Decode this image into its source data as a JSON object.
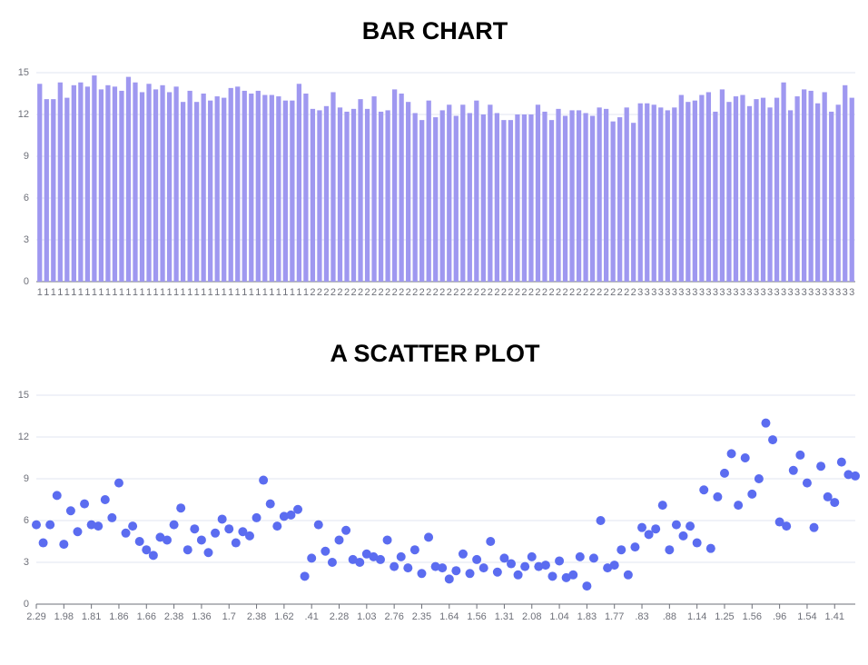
{
  "chart_data": [
    {
      "type": "bar",
      "title": "BAR CHART",
      "color": "#9f98f0",
      "categories": [
        "1",
        "1",
        "1",
        "1",
        "1",
        "1",
        "1",
        "1",
        "1",
        "1",
        "1",
        "1",
        "1",
        "1",
        "1",
        "1",
        "1",
        "1",
        "1",
        "1",
        "1",
        "1",
        "1",
        "1",
        "1",
        "1",
        "1",
        "1",
        "1",
        "1",
        "1",
        "1",
        "1",
        "1",
        "1",
        "1",
        "1",
        "1",
        "1",
        "1",
        "2",
        "2",
        "2",
        "2",
        "2",
        "2",
        "2",
        "2",
        "2",
        "2",
        "2",
        "2",
        "2",
        "2",
        "2",
        "2",
        "2",
        "2",
        "2",
        "2",
        "2",
        "2",
        "2",
        "2",
        "2",
        "2",
        "2",
        "2",
        "2",
        "2",
        "2",
        "2",
        "2",
        "2",
        "2",
        "2",
        "2",
        "2",
        "2",
        "2",
        "2",
        "2",
        "2",
        "2",
        "2",
        "2",
        "2",
        "2",
        "3",
        "3",
        "3",
        "3",
        "3",
        "3",
        "3",
        "3",
        "3",
        "3",
        "3",
        "3",
        "3",
        "3",
        "3",
        "3",
        "3",
        "3",
        "3",
        "3",
        "3",
        "3",
        "3",
        "3",
        "3",
        "3",
        "3",
        "3",
        "3",
        "3",
        "3",
        "3"
      ],
      "values": [
        14.2,
        13.1,
        13.1,
        14.3,
        13.2,
        14.1,
        14.3,
        14.0,
        14.8,
        13.8,
        14.1,
        14.0,
        13.7,
        14.7,
        14.3,
        13.6,
        14.2,
        13.8,
        14.1,
        13.6,
        14.0,
        12.9,
        13.7,
        12.9,
        13.5,
        13.0,
        13.3,
        13.2,
        13.9,
        14.0,
        13.7,
        13.5,
        13.7,
        13.4,
        13.4,
        13.3,
        13.0,
        13.0,
        14.2,
        13.5,
        12.4,
        12.3,
        12.6,
        13.6,
        12.5,
        12.2,
        12.4,
        13.1,
        12.4,
        13.3,
        12.2,
        12.3,
        13.8,
        13.5,
        12.9,
        12.1,
        11.6,
        13.0,
        11.8,
        12.3,
        12.7,
        11.9,
        12.7,
        12.1,
        13.0,
        12.0,
        12.7,
        12.1,
        11.6,
        11.6,
        12.0,
        12.0,
        12.0,
        12.7,
        12.2,
        11.6,
        12.4,
        11.9,
        12.3,
        12.3,
        12.1,
        11.9,
        12.5,
        12.4,
        11.5,
        11.8,
        12.5,
        11.4,
        12.8,
        12.8,
        12.7,
        12.5,
        12.3,
        12.5,
        13.4,
        12.9,
        13.0,
        13.4,
        13.6,
        12.2,
        13.8,
        12.9,
        13.3,
        13.4,
        12.6,
        13.1,
        13.2,
        12.5,
        13.2,
        14.3,
        12.3,
        13.3,
        13.8,
        13.7,
        12.8,
        13.6,
        12.2,
        12.7,
        14.1,
        13.2
      ],
      "ylim": [
        0,
        15
      ],
      "yticks": [
        0,
        3,
        6,
        9,
        12,
        15
      ],
      "grid": true
    },
    {
      "type": "scatter",
      "title": "A SCATTER PLOT",
      "color": "#5b6cf0",
      "categories": [
        "2.29",
        null,
        null,
        null,
        "1.98",
        null,
        null,
        null,
        "1.81",
        null,
        null,
        null,
        "1.86",
        null,
        null,
        null,
        "1.66",
        null,
        null,
        null,
        "2.38",
        null,
        null,
        null,
        "1.36",
        null,
        null,
        null,
        "1.7",
        null,
        null,
        null,
        "2.38",
        null,
        null,
        null,
        "1.62",
        null,
        null,
        null,
        ".41",
        null,
        null,
        null,
        "2.28",
        null,
        null,
        null,
        "1.03",
        null,
        null,
        null,
        "2.76",
        null,
        null,
        null,
        "2.35",
        null,
        null,
        null,
        "1.64",
        null,
        null,
        null,
        "1.56",
        null,
        null,
        null,
        "1.31",
        null,
        null,
        null,
        "2.08",
        null,
        null,
        null,
        "1.04",
        null,
        null,
        null,
        "1.83",
        null,
        null,
        null,
        "1.77",
        null,
        null,
        null,
        ".83",
        null,
        null,
        null,
        ".88",
        null,
        null,
        null,
        "1.14",
        null,
        null,
        null,
        "1.25",
        null,
        null,
        null,
        "1.56",
        null,
        null,
        null,
        ".96",
        null,
        null,
        null,
        "1.54",
        null,
        null,
        null,
        "1.41",
        null,
        null,
        null
      ],
      "values": [
        5.7,
        4.4,
        5.7,
        7.8,
        4.3,
        6.7,
        5.2,
        7.2,
        5.7,
        5.6,
        7.5,
        6.2,
        8.7,
        5.1,
        5.6,
        4.5,
        3.9,
        3.5,
        4.8,
        4.6,
        5.7,
        6.9,
        3.9,
        5.4,
        4.6,
        3.7,
        5.1,
        6.1,
        5.4,
        4.4,
        5.2,
        4.9,
        6.2,
        8.9,
        7.2,
        5.6,
        6.3,
        6.4,
        6.8,
        2.0,
        3.3,
        5.7,
        3.8,
        3.0,
        4.6,
        5.3,
        3.2,
        3.0,
        3.6,
        3.4,
        3.2,
        4.6,
        2.7,
        3.4,
        2.6,
        3.9,
        2.2,
        4.8,
        2.7,
        2.6,
        1.8,
        2.4,
        3.6,
        2.2,
        3.2,
        2.6,
        4.5,
        2.3,
        3.3,
        2.9,
        2.1,
        2.7,
        3.4,
        2.7,
        2.8,
        2.0,
        3.1,
        1.9,
        2.1,
        3.4,
        1.3,
        3.3,
        6.0,
        2.6,
        2.8,
        3.9,
        2.1,
        4.1,
        5.5,
        5.0,
        5.4,
        7.1,
        3.9,
        5.7,
        4.9,
        5.6,
        4.4,
        8.2,
        4.0,
        7.7,
        9.4,
        10.8,
        7.1,
        10.5,
        7.9,
        9.0,
        13.0,
        11.8,
        5.9,
        5.6,
        9.6,
        10.7,
        8.7,
        5.5,
        9.9,
        7.7,
        7.3,
        10.2,
        9.3,
        9.2
      ],
      "ylim": [
        0,
        15
      ],
      "yticks": [
        0,
        3,
        6,
        9,
        12,
        15
      ],
      "grid": true
    }
  ]
}
